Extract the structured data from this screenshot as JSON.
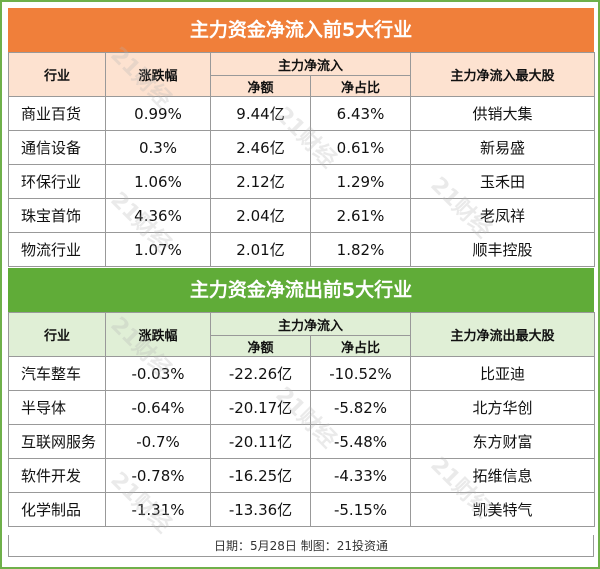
{
  "watermark": "21财经",
  "inflow": {
    "title": "主力资金净流入前5大行业",
    "headers": {
      "industry": "行业",
      "change": "涨跌幅",
      "group": "主力净流入",
      "amount": "净额",
      "ratio": "净占比",
      "top_stock": "主力净流入最大股"
    },
    "rows": [
      {
        "industry": "商业百货",
        "change": "0.99%",
        "amount": "9.44亿",
        "ratio": "6.43%",
        "top_stock": "供销大集"
      },
      {
        "industry": "通信设备",
        "change": "0.3%",
        "amount": "2.46亿",
        "ratio": "0.61%",
        "top_stock": "新易盛"
      },
      {
        "industry": "环保行业",
        "change": "1.06%",
        "amount": "2.12亿",
        "ratio": "1.29%",
        "top_stock": "玉禾田"
      },
      {
        "industry": "珠宝首饰",
        "change": "4.36%",
        "amount": "2.04亿",
        "ratio": "2.61%",
        "top_stock": "老凤祥"
      },
      {
        "industry": "物流行业",
        "change": "1.07%",
        "amount": "2.01亿",
        "ratio": "1.82%",
        "top_stock": "顺丰控股"
      }
    ]
  },
  "outflow": {
    "title": "主力资金净流出前5大行业",
    "headers": {
      "industry": "行业",
      "change": "涨跌幅",
      "group": "主力净流入",
      "amount": "净额",
      "ratio": "净占比",
      "top_stock": "主力净流出最大股"
    },
    "rows": [
      {
        "industry": "汽车整车",
        "change": "-0.03%",
        "amount": "-22.26亿",
        "ratio": "-10.52%",
        "top_stock": "比亚迪"
      },
      {
        "industry": "半导体",
        "change": "-0.64%",
        "amount": "-20.17亿",
        "ratio": "-5.82%",
        "top_stock": "北方华创"
      },
      {
        "industry": "互联网服务",
        "change": "-0.7%",
        "amount": "-20.11亿",
        "ratio": "-5.48%",
        "top_stock": "东方财富"
      },
      {
        "industry": "软件开发",
        "change": "-0.78%",
        "amount": "-16.25亿",
        "ratio": "-4.33%",
        "top_stock": "拓维信息"
      },
      {
        "industry": "化学制品",
        "change": "-1.31%",
        "amount": "-13.36亿",
        "ratio": "-5.15%",
        "top_stock": "凯美特气"
      }
    ]
  },
  "footer": "日期：5月28日 制图：21投资通",
  "colors": {
    "inflow_banner": "#f07f3a",
    "inflow_header_bg": "#fde2d0",
    "outflow_banner": "#60ac38",
    "outflow_header_bg": "#e0efd6",
    "border": "#6fb04a"
  }
}
